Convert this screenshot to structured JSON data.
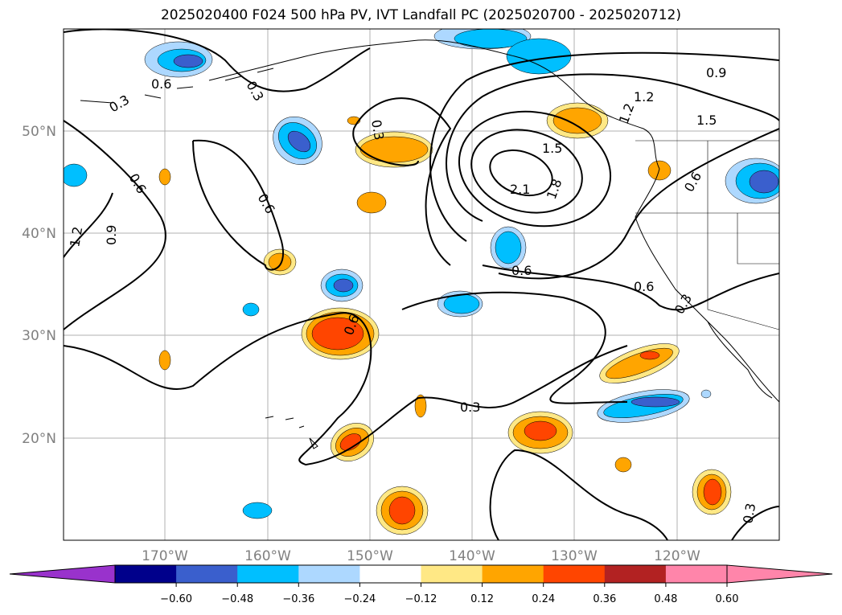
{
  "title": "2025020400 F024 500 hPa PV, IVT Landfall PC (2025020700 - 2025020712)",
  "map": {
    "lat_labels": [
      "50°N",
      "40°N",
      "30°N",
      "20°N"
    ],
    "lon_labels": [
      "170°W",
      "160°W",
      "150°W",
      "140°W",
      "130°W",
      "120°W"
    ],
    "contour_labels": [
      "0.9",
      "1.2",
      "1.5",
      "2.1",
      "1.8",
      "1.5",
      "1.2",
      "0.6",
      "0.3",
      "0.3",
      "0.6",
      "0.6",
      "0.9",
      "1.2",
      "0.6",
      "0.3",
      "0.6",
      "0.3",
      "0.3",
      "0.3",
      "0.6",
      "0.6"
    ]
  },
  "colorbar": {
    "ticks": [
      "−0.60",
      "−0.48",
      "−0.36",
      "−0.24",
      "−0.12",
      "0.12",
      "0.24",
      "0.36",
      "0.48",
      "0.60"
    ],
    "colors": {
      "under": "#9932CC",
      "bins": [
        "#00008B",
        "#3A5FCD",
        "#00BFFF",
        "#ADD8FF",
        "#FFFFFF",
        "#FFE885",
        "#FFA500",
        "#FF4500",
        "#B22222",
        "#FF85AA"
      ],
      "over": "#FF85AA"
    }
  }
}
